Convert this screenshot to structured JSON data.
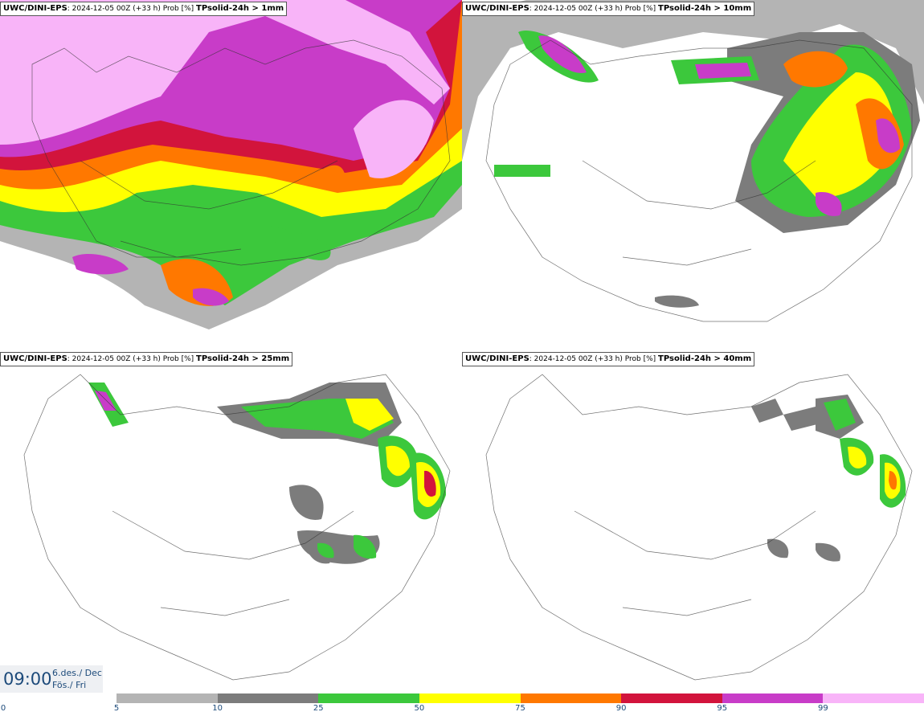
{
  "panels": [
    {
      "model": "UWC/DINI-EPS",
      "run": ": 2024-12-05 00Z (+33 h) Prob [%] ",
      "variable": "TPsolid-24h > 1mm"
    },
    {
      "model": "UWC/DINI-EPS",
      "run": ": 2024-12-05 00Z (+33 h) Prob [%] ",
      "variable": "TPsolid-24h > 10mm"
    },
    {
      "model": "UWC/DINI-EPS",
      "run": ": 2024-12-05 00Z (+33 h) Prob [%] ",
      "variable": "TPsolid-24h > 25mm"
    },
    {
      "model": "UWC/DINI-EPS",
      "run": ": 2024-12-05 00Z (+33 h) Prob [%] ",
      "variable": "TPsolid-24h > 40mm"
    }
  ],
  "valid_time": {
    "time": "09:00",
    "date": "6.des./ Dec",
    "weekday": "Fös./ Fri"
  },
  "legend": {
    "ticks": [
      "0",
      "5",
      "10",
      "25",
      "50",
      "75",
      "90",
      "95",
      "99"
    ],
    "colors": [
      "#b4b4b4",
      "#7c7c7c",
      "#3cc83c",
      "#ffff00",
      "#ff7800",
      "#d2143c",
      "#c83cc8",
      "#f8b4f8"
    ]
  }
}
